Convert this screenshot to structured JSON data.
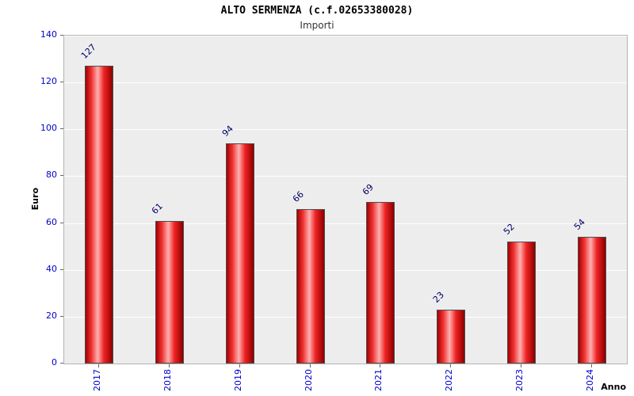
{
  "chart_data": {
    "type": "bar",
    "title": "ALTO SERMENZA (c.f.02653380028)",
    "subtitle": "Importi",
    "categories": [
      "2017",
      "2018",
      "2019",
      "2020",
      "2021",
      "2022",
      "2023",
      "2024"
    ],
    "values": [
      127,
      61,
      94,
      66,
      69,
      23,
      52,
      54
    ],
    "xlabel": "Anno",
    "ylabel": "Euro",
    "ylim": [
      0,
      140
    ],
    "yticks": [
      0,
      20,
      40,
      60,
      80,
      100,
      120,
      140
    ],
    "grid": true,
    "legend": "none",
    "plot_bg": "#ededed",
    "gridline_color": "#ffffff",
    "bar_color": "#ff2a2a",
    "bar_outline_color": "#4d4d4d",
    "value_label_color": "#000066",
    "axis_tick_label_color": "#0000cc",
    "axis_title_color": "#000000"
  }
}
